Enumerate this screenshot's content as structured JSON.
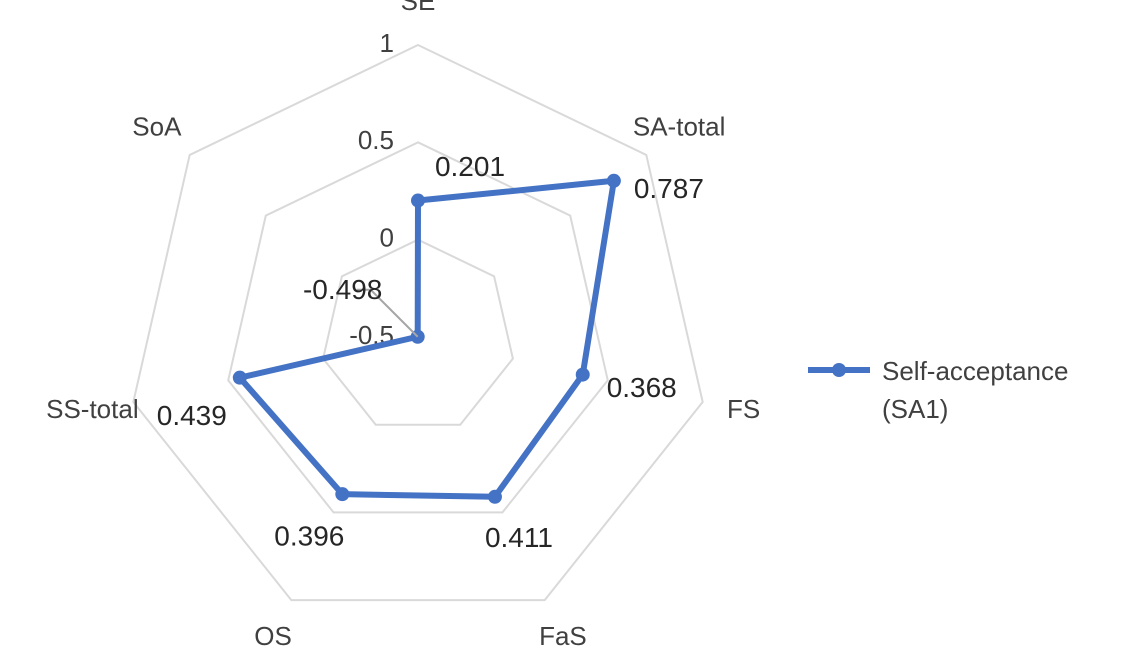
{
  "chart_data": {
    "type": "radar",
    "categories": [
      "SE",
      "SA-total",
      "FS",
      "FaS",
      "OS",
      "SS-total",
      "SoA"
    ],
    "series": [
      {
        "name": "Self-acceptance (SA1)",
        "color": "#4472c4",
        "values": [
          0.201,
          0.787,
          0.368,
          0.411,
          0.396,
          0.439,
          -0.498
        ]
      }
    ],
    "ylim": [
      -0.5,
      1
    ],
    "yticks": [
      -0.5,
      0,
      0.5,
      1
    ],
    "grid": true,
    "legend": "right"
  }
}
